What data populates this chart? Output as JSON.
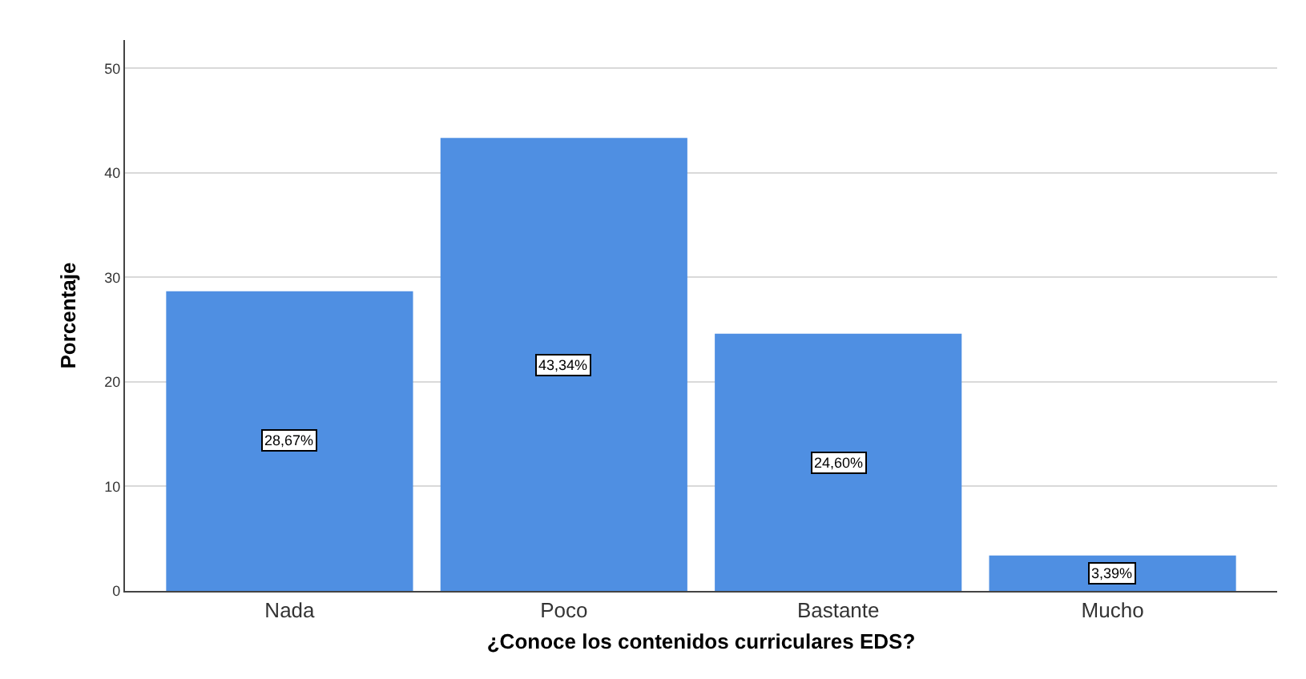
{
  "chart_data": {
    "type": "bar",
    "xlabel": "¿Conoce los contenidos curriculares EDS?",
    "ylabel": "Porcentaje",
    "categories": [
      "Nada",
      "Poco",
      "Bastante",
      "Mucho"
    ],
    "values": [
      28.67,
      43.34,
      24.6,
      3.39
    ],
    "value_labels": [
      "28,67%",
      "43,34%",
      "24,60%",
      "3,39%"
    ],
    "color": "#4f8fe2",
    "ylim": [
      0,
      52.7
    ],
    "yticks": [
      0,
      10,
      20,
      30,
      40,
      50
    ],
    "grid": "y",
    "legend": false
  }
}
